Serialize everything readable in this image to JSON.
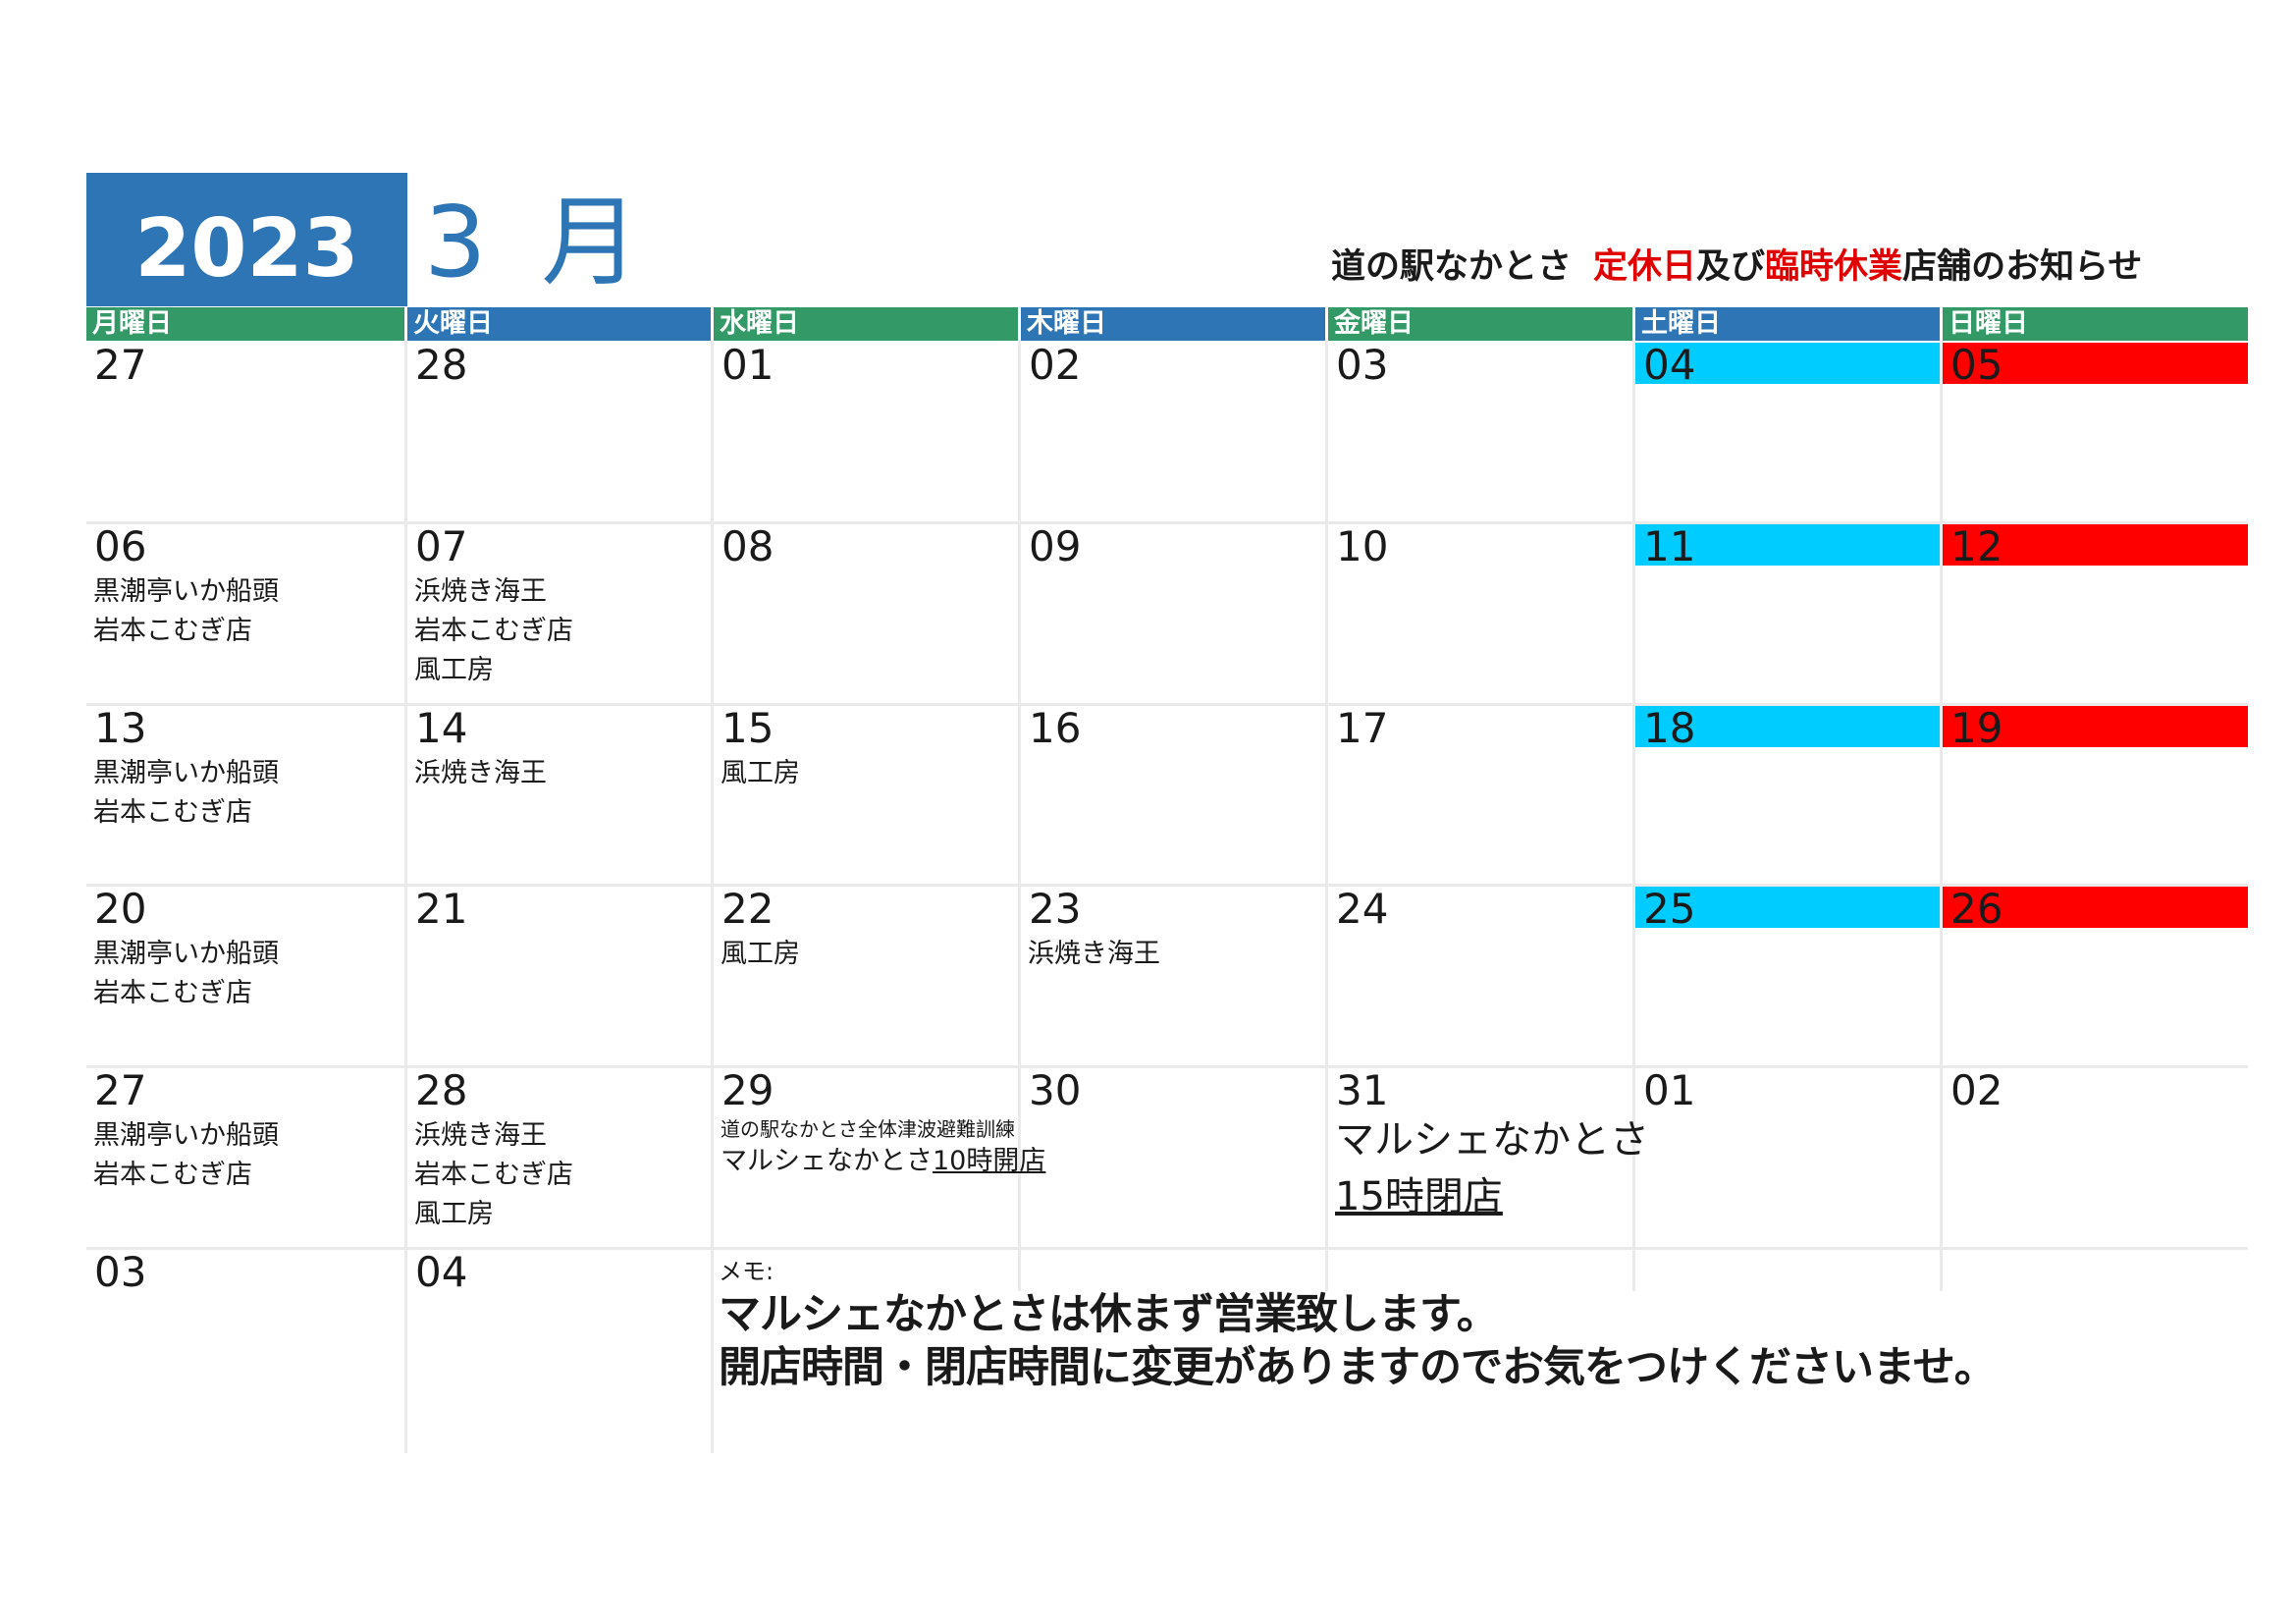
{
  "header": {
    "year": "2023",
    "month": "3 月",
    "notice": {
      "part1": "道の駅なかとさ",
      "part2": "定休日",
      "part3": "及び",
      "part4": "臨時休業",
      "part5": "店舗のお知らせ"
    }
  },
  "weekdays": [
    "月曜日",
    "火曜日",
    "水曜日",
    "木曜日",
    "金曜日",
    "土曜日",
    "日曜日"
  ],
  "colors": {
    "blue": "#2e75b6",
    "green": "#339966",
    "saturday": "#00ccff",
    "sunday": "#ff0000",
    "notice_red": "#e00000"
  },
  "weeks": [
    {
      "days": [
        {
          "num": "27",
          "shops": []
        },
        {
          "num": "28",
          "shops": []
        },
        {
          "num": "01",
          "shops": []
        },
        {
          "num": "02",
          "shops": []
        },
        {
          "num": "03",
          "shops": []
        },
        {
          "num": "04",
          "shops": []
        },
        {
          "num": "05",
          "shops": []
        }
      ]
    },
    {
      "days": [
        {
          "num": "06",
          "shops": [
            "黒潮亭いか船頭",
            "岩本こむぎ店"
          ]
        },
        {
          "num": "07",
          "shops": [
            "浜焼き海王",
            "岩本こむぎ店",
            "風工房"
          ]
        },
        {
          "num": "08",
          "shops": []
        },
        {
          "num": "09",
          "shops": []
        },
        {
          "num": "10",
          "shops": []
        },
        {
          "num": "11",
          "shops": []
        },
        {
          "num": "12",
          "shops": []
        }
      ]
    },
    {
      "days": [
        {
          "num": "13",
          "shops": [
            "黒潮亭いか船頭",
            "岩本こむぎ店"
          ]
        },
        {
          "num": "14",
          "shops": [
            "浜焼き海王"
          ]
        },
        {
          "num": "15",
          "shops": [
            "風工房"
          ]
        },
        {
          "num": "16",
          "shops": []
        },
        {
          "num": "17",
          "shops": []
        },
        {
          "num": "18",
          "shops": []
        },
        {
          "num": "19",
          "shops": []
        }
      ]
    },
    {
      "days": [
        {
          "num": "20",
          "shops": [
            "黒潮亭いか船頭",
            "岩本こむぎ店"
          ]
        },
        {
          "num": "21",
          "shops": []
        },
        {
          "num": "22",
          "shops": [
            "風工房"
          ]
        },
        {
          "num": "23",
          "shops": [
            "浜焼き海王"
          ]
        },
        {
          "num": "24",
          "shops": []
        },
        {
          "num": "25",
          "shops": []
        },
        {
          "num": "26",
          "shops": []
        }
      ]
    },
    {
      "days": [
        {
          "num": "27",
          "shops": [
            "黒潮亭いか船頭",
            "岩本こむぎ店"
          ]
        },
        {
          "num": "28",
          "shops": [
            "浜焼き海王",
            "岩本こむぎ店",
            "風工房"
          ]
        },
        {
          "num": "29",
          "shops": []
        },
        {
          "num": "30",
          "shops": []
        },
        {
          "num": "31",
          "shops": []
        },
        {
          "num": "01",
          "shops": []
        },
        {
          "num": "02",
          "shops": []
        }
      ]
    },
    {
      "days": [
        {
          "num": "03",
          "shops": []
        },
        {
          "num": "04",
          "shops": []
        }
      ]
    }
  ],
  "special": {
    "d29_line1": "道の駅なかとさ全体津波避難訓練",
    "d29_line2a": "マルシェなかとさ",
    "d29_line2b": "10時開店",
    "d31_line1": "マルシェなかとさ",
    "d31_line2": "15時閉店"
  },
  "memo": {
    "label": "メモ:",
    "line1": "マルシェなかとさは休まず営業致します。",
    "line2": "開店時間・閉店時間に変更がありますのでお気をつけくださいませ。"
  }
}
